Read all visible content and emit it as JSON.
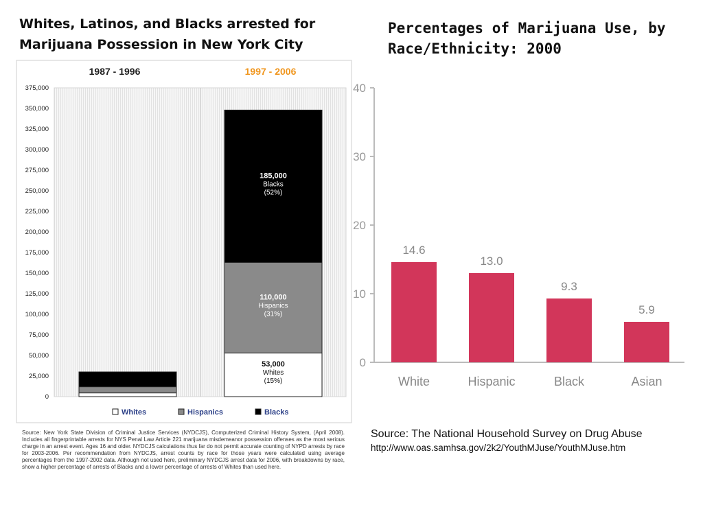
{
  "left": {
    "title": "Whites, Latinos, and Blacks arrested for Marijuana Possession in New York City",
    "source": "Source: New York State Division of Criminal Justice Services (NYDCJS), Computerized Criminal History System, (April 2008). Includes all fingerprintable arrests for NYS Penal Law Article 221 marijuana misdemeanor possession offenses as the most serious charge in an arrest event. Ages 16 and older. NYDCJS calculations thus far do not permit accurate counting of NYPD arrests by race for 2003-2006. Per recommendation from NYDCJS, arrest counts by race for those years were calculated using average percentages from the 1997-2002 data. Although not used here, preliminary NYDCJS arrest data for 2006, with breakdowns by race, show a higher percentage of arrests of Blacks and a lower percentage of arrests of Whites than used here."
  },
  "right": {
    "title": "Percentages of Marijuana Use, by Race/Ethnicity: 2000",
    "source_line1": "Source: The National Household Survey on Drug Abuse",
    "source_line2": "http://www.oas.samhsa.gov/2k2/YouthMJuse/YouthMJuse.htm"
  },
  "colors": {
    "white": "#ffffff",
    "hispanic": "#8a8a8a",
    "black": "#000000",
    "accent_orange": "#f0961e",
    "bar_red": "#d2365a"
  },
  "chart_data": [
    {
      "type": "bar",
      "stacked": true,
      "categories": [
        "1987 - 1996",
        "1997 - 2006"
      ],
      "series": [
        {
          "name": "Whites",
          "values": [
            4500,
            53000
          ],
          "labels": [
            "",
            "53,000\nWhites\n(15%)"
          ]
        },
        {
          "name": "Hispanics",
          "values": [
            7500,
            110000
          ],
          "labels": [
            "",
            "110,000\nHispanics\n(31%)"
          ]
        },
        {
          "name": "Blacks",
          "values": [
            18000,
            185000
          ],
          "labels": [
            "",
            "185,000\nBlacks\n(52%)"
          ]
        }
      ],
      "ylim": [
        0,
        375000
      ],
      "yticks": [
        "0",
        "25,000",
        "50,000",
        "75,000",
        "100,000",
        "125,000",
        "150,000",
        "175,000",
        "200,000",
        "225,000",
        "250,000",
        "275,000",
        "300,000",
        "325,000",
        "350,000",
        "375,000"
      ],
      "legend_position": "bottom"
    },
    {
      "type": "bar",
      "categories": [
        "White",
        "Hispanic",
        "Black",
        "Asian"
      ],
      "values": [
        14.6,
        13.0,
        9.3,
        5.9
      ],
      "value_labels": [
        "14.6",
        "13.0",
        "9.3",
        "5.9"
      ],
      "ylim": [
        0,
        40
      ],
      "yticks": [
        "0",
        "10",
        "20",
        "30",
        "40"
      ]
    }
  ]
}
